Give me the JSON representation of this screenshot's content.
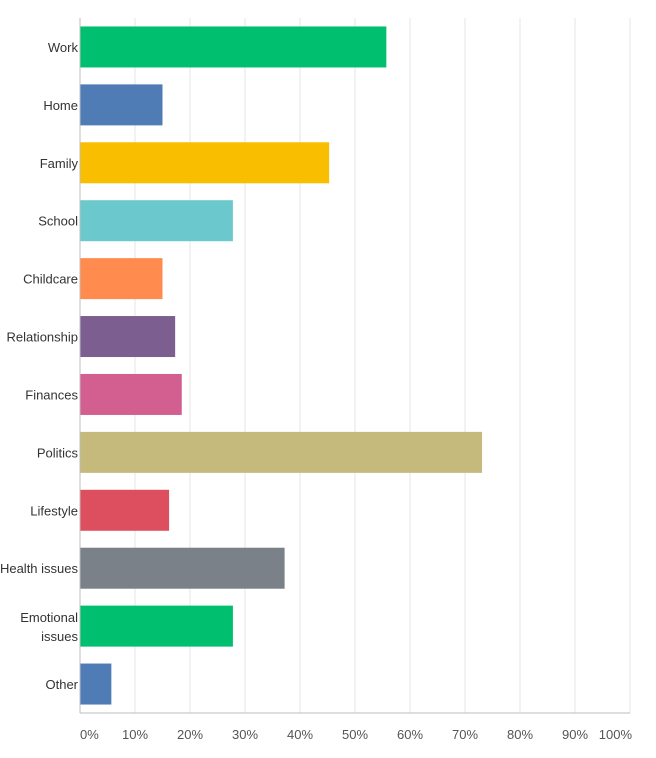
{
  "chart_data": {
    "type": "bar",
    "orientation": "horizontal",
    "title": "",
    "xlabel": "",
    "ylabel": "",
    "categories": [
      "Work",
      "Home",
      "Family",
      "School",
      "Childcare",
      "Relationship",
      "Finances",
      "Politics",
      "Lifestyle",
      "Health issues",
      "Emotional issues",
      "Other"
    ],
    "values": [
      55.7,
      15.0,
      45.3,
      27.8,
      15.0,
      17.3,
      18.5,
      73.1,
      16.2,
      37.2,
      27.8,
      5.7
    ],
    "colors": [
      "#00bf6f",
      "#507cb6",
      "#f9be00",
      "#6bc8cd",
      "#ff8b4f",
      "#7d5e90",
      "#d25f90",
      "#c5b97b",
      "#dd4f5f",
      "#7a8188",
      "#00bf6f",
      "#507cb6"
    ],
    "xlim": [
      0,
      100
    ],
    "ticks": [
      "0%",
      "10%",
      "20%",
      "30%",
      "40%",
      "50%",
      "60%",
      "70%",
      "80%",
      "90%",
      "100%"
    ],
    "grid": true,
    "legend": false
  }
}
